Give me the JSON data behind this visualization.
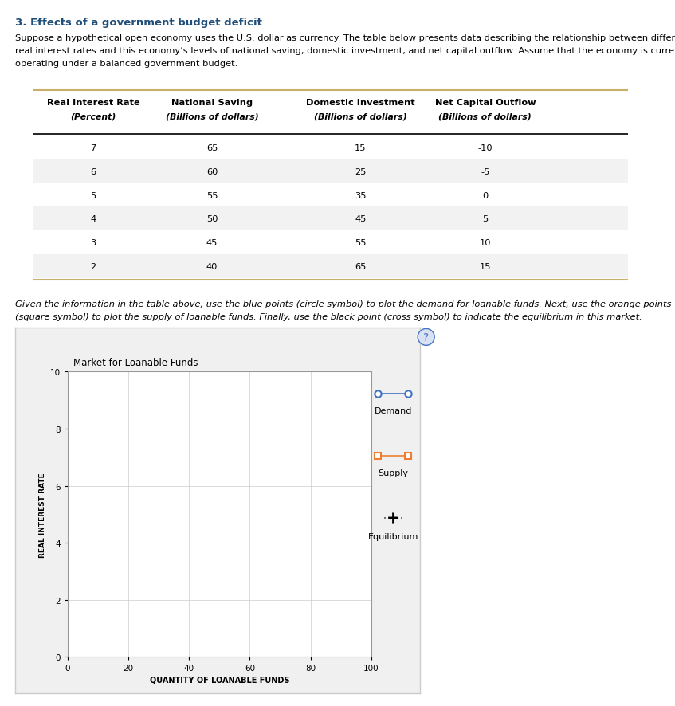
{
  "title": "3. Effects of a government budget deficit",
  "intro_line1": "Suppose a hypothetical open economy uses the U.S. dollar as currency. The table below presents data describing the relationship between different",
  "intro_line2": "real interest rates and this economy’s levels of national saving, domestic investment, and net capital outflow. Assume that the economy is currently",
  "intro_line3": "operating under a balanced government budget.",
  "table_col_headers_line1": [
    "Real Interest Rate",
    "National Saving",
    "Domestic Investment",
    "Net Capital Outflow"
  ],
  "table_col_headers_line2": [
    "(Percent)",
    "(Billions of dollars)",
    "(Billions of dollars)",
    "(Billions of dollars)"
  ],
  "table_data": [
    [
      7,
      65,
      15,
      -10
    ],
    [
      6,
      60,
      25,
      -5
    ],
    [
      5,
      55,
      35,
      0
    ],
    [
      4,
      50,
      45,
      5
    ],
    [
      3,
      45,
      55,
      10
    ],
    [
      2,
      40,
      65,
      15
    ]
  ],
  "instruction_line1": "Given the information in the table above, use the blue points (circle symbol) to plot the demand for loanable funds. Next, use the orange points",
  "instruction_line2": "(square symbol) to plot the supply of loanable funds. Finally, use the black point (cross symbol) to indicate the equilibrium in this market.",
  "chart_title": "Market for Loanable Funds",
  "xlabel": "QUANTITY OF LOANABLE FUNDS",
  "ylabel": "REAL INTEREST RATE",
  "xlim": [
    0,
    100
  ],
  "ylim": [
    0,
    10
  ],
  "xticks": [
    0,
    20,
    40,
    60,
    80,
    100
  ],
  "yticks": [
    0,
    2,
    4,
    6,
    8,
    10
  ],
  "demand_color": "#4472C4",
  "supply_color": "#ED7D31",
  "equilibrium_color": "#000000",
  "legend_demand_label": "Demand",
  "legend_supply_label": "Supply",
  "legend_equilibrium_label": "Equilibrium",
  "chart_bg_color": "#FFFFFF",
  "outer_bg_color": "#F0F0F0",
  "outer_border_color": "#CCCCCC",
  "question_mark_color": "#4472C4",
  "table_gold_color": "#C9B06A",
  "table_stripe_color": "#F2F2F2",
  "grid_color": "#CCCCCC"
}
